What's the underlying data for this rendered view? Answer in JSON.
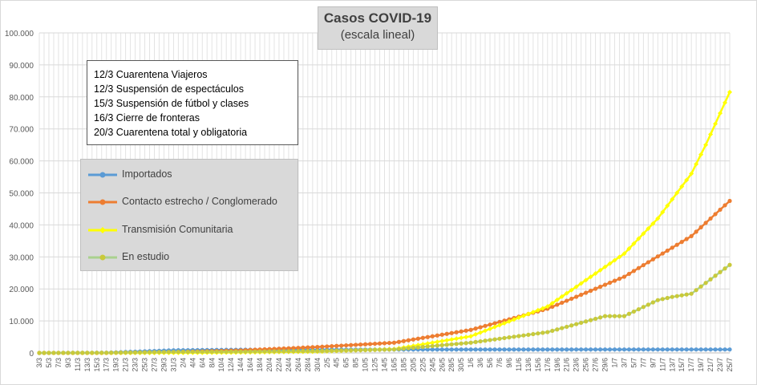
{
  "chart_data": {
    "type": "line",
    "title": "Casos  COVID-19",
    "subtitle": "(escala lineal)",
    "ylim": [
      0,
      100000
    ],
    "yticks": [
      "0",
      "10.000",
      "20.000",
      "30.000",
      "40.000",
      "50.000",
      "60.000",
      "70.000",
      "80.000",
      "90.000",
      "100.000"
    ],
    "grid": true,
    "legend_position": "upper-left",
    "start_date": "2020-03-03",
    "end_date": "2020-07-25",
    "x_tick_labels": [
      "3/3",
      "5/3",
      "7/3",
      "9/3",
      "11/3",
      "13/3",
      "15/3",
      "17/3",
      "19/3",
      "21/3",
      "23/3",
      "25/3",
      "27/3",
      "29/3",
      "31/3",
      "2/4",
      "4/4",
      "6/4",
      "8/4",
      "10/4",
      "12/4",
      "14/4",
      "16/4",
      "18/4",
      "20/4",
      "22/4",
      "24/4",
      "26/4",
      "28/4",
      "30/4",
      "2/5",
      "4/5",
      "6/5",
      "8/5",
      "10/5",
      "12/5",
      "14/5",
      "16/5",
      "18/5",
      "20/5",
      "22/5",
      "24/5",
      "26/5",
      "28/5",
      "30/5",
      "1/6",
      "3/6",
      "5/6",
      "7/6",
      "9/6",
      "11/6",
      "13/6",
      "15/6",
      "17/6",
      "19/6",
      "21/6",
      "23/6",
      "25/6",
      "27/6",
      "29/6",
      "1/7",
      "3/7",
      "5/7",
      "7/7",
      "9/7",
      "11/7",
      "13/7",
      "15/7",
      "17/7",
      "19/7",
      "21/7",
      "23/7",
      "25/7"
    ],
    "notes": [
      "12/3 Cuarentena Viajeros",
      "12/3 Suspensión de espectáculos",
      "15/3 Suspensión de fútbol y clases",
      "16/3 Cierre de fronteras",
      "20/3 Cuarentena total y obligatoria"
    ],
    "series": [
      {
        "name": "Importados",
        "color": "#5b9bd5",
        "marker": "circle",
        "points": [
          [
            "3/3",
            1
          ],
          [
            "17/3",
            65
          ],
          [
            "31/3",
            830
          ],
          [
            "14/4",
            1000
          ],
          [
            "30/4",
            1030
          ],
          [
            "16/5",
            1050
          ],
          [
            "1/6",
            1060
          ],
          [
            "17/6",
            1070
          ],
          [
            "3/7",
            1075
          ],
          [
            "17/7",
            1080
          ],
          [
            "25/7",
            1085
          ]
        ]
      },
      {
        "name": "Contacto estrecho / Conglomerado",
        "color": "#ed7d31",
        "marker": "circle",
        "points": [
          [
            "3/3",
            0
          ],
          [
            "17/3",
            5
          ],
          [
            "31/3",
            260
          ],
          [
            "14/4",
            800
          ],
          [
            "30/4",
            1850
          ],
          [
            "16/5",
            3200
          ],
          [
            "1/6",
            7200
          ],
          [
            "17/6",
            13800
          ],
          [
            "3/7",
            23800
          ],
          [
            "17/7",
            36500
          ],
          [
            "25/7",
            47500
          ]
        ]
      },
      {
        "name": "Transmisión Comunitaria",
        "color": "#ffff00",
        "marker": "diamond",
        "points": [
          [
            "3/3",
            0
          ],
          [
            "17/3",
            0
          ],
          [
            "31/3",
            20
          ],
          [
            "14/4",
            150
          ],
          [
            "30/4",
            400
          ],
          [
            "16/5",
            1200
          ],
          [
            "1/6",
            5200
          ],
          [
            "17/6",
            14500
          ],
          [
            "3/7",
            31000
          ],
          [
            "10/7",
            42000
          ],
          [
            "17/7",
            56000
          ],
          [
            "20/7",
            65000
          ],
          [
            "25/7",
            81500
          ]
        ]
      },
      {
        "name": "En estudio",
        "color": "#b5c335",
        "marker": "circle",
        "points": [
          [
            "3/3",
            0
          ],
          [
            "17/3",
            50
          ],
          [
            "31/3",
            300
          ],
          [
            "14/4",
            380
          ],
          [
            "30/4",
            600
          ],
          [
            "16/5",
            1100
          ],
          [
            "1/6",
            3200
          ],
          [
            "17/6",
            6500
          ],
          [
            "29/6",
            11500
          ],
          [
            "3/7",
            11500
          ],
          [
            "10/7",
            16500
          ],
          [
            "13/7",
            17500
          ],
          [
            "17/7",
            18500
          ],
          [
            "25/7",
            27500
          ]
        ]
      }
    ]
  }
}
